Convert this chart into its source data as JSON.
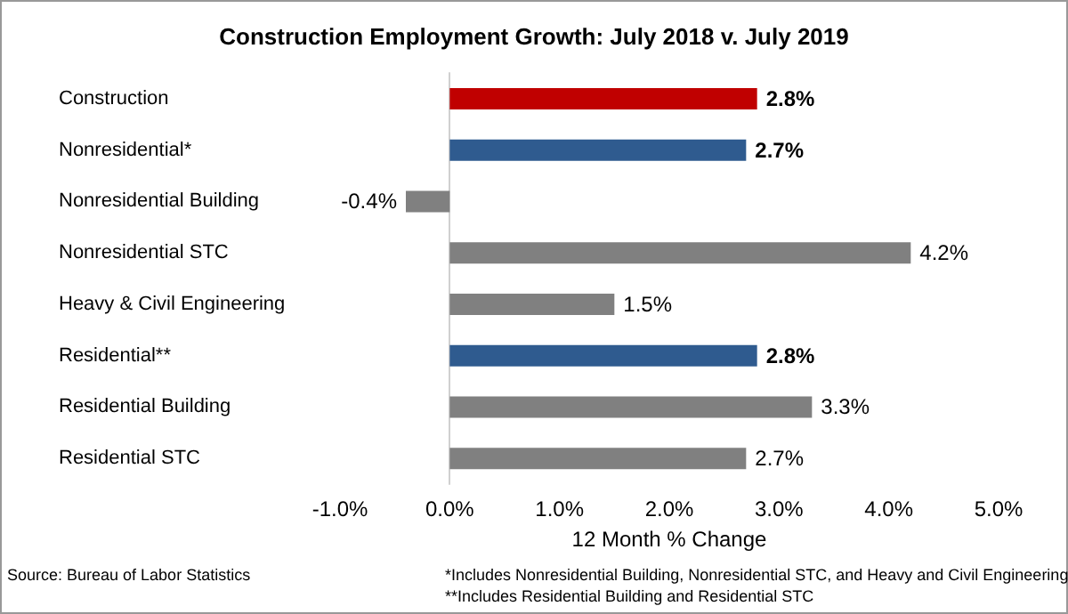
{
  "chart_data": {
    "type": "bar",
    "orientation": "horizontal",
    "title": "Construction Employment Growth: July 2018 v. July 2019",
    "xlabel": "12 Month % Change",
    "categories": [
      "Construction",
      "Nonresidential*",
      "Nonresidential Building",
      "Nonresidential STC",
      "Heavy & Civil Engineering",
      "Residential**",
      "Residential Building",
      "Residential STC"
    ],
    "values": [
      2.8,
      2.7,
      -0.4,
      4.2,
      1.5,
      2.8,
      3.3,
      2.7
    ],
    "colors": [
      "#c00000",
      "#2f5b8f",
      "#808080",
      "#808080",
      "#808080",
      "#2f5b8f",
      "#808080",
      "#808080"
    ],
    "value_labels": [
      "2.8%",
      "2.7%",
      "-0.4%",
      "4.2%",
      "1.5%",
      "2.8%",
      "3.3%",
      "2.7%"
    ],
    "xlim": [
      -1,
      5
    ],
    "xticks": [
      {
        "value": -1,
        "label": "-1.0%"
      },
      {
        "value": 0,
        "label": "0.0%"
      },
      {
        "value": 1,
        "label": "1.0%"
      },
      {
        "value": 2,
        "label": "2.0%"
      },
      {
        "value": 3,
        "label": "3.0%"
      },
      {
        "value": 4,
        "label": "4.0%"
      },
      {
        "value": 5,
        "label": "5.0%"
      }
    ],
    "annotations": [
      "Source:  Bureau of Labor Statistics",
      "*Includes Nonresidential Building, Nonresidential STC, and Heavy and Civil Engineering",
      "**Includes Residential Building and Residential STC"
    ]
  }
}
